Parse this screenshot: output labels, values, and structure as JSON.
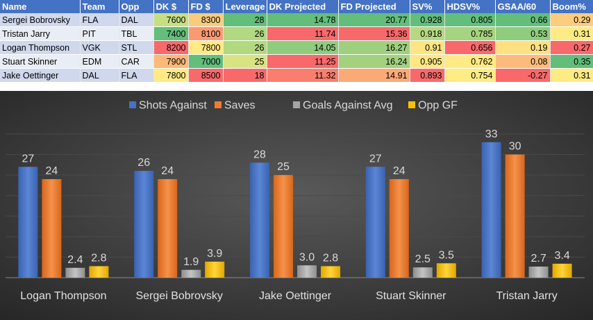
{
  "table": {
    "headers": [
      "Name",
      "Team",
      "Opp",
      "DK $",
      "FD $",
      "Leverage",
      "DK Projected",
      "FD Projected",
      "SV%",
      "HDSV%",
      "GSAA/60",
      "Boom%"
    ],
    "rows": [
      [
        "Sergei Bobrovsky",
        "FLA",
        "DAL",
        "7600",
        "8300",
        "28",
        "14.78",
        "20.77",
        "0.928",
        "0.805",
        "0.66",
        "0.29"
      ],
      [
        "Tristan Jarry",
        "PIT",
        "TBL",
        "7400",
        "8100",
        "26",
        "11.74",
        "15.36",
        "0.918",
        "0.785",
        "0.53",
        "0.31"
      ],
      [
        "Logan Thompson",
        "VGK",
        "STL",
        "8200",
        "7800",
        "26",
        "14.05",
        "16.27",
        "0.91",
        "0.656",
        "0.19",
        "0.27"
      ],
      [
        "Stuart Skinner",
        "EDM",
        "CAR",
        "7900",
        "7000",
        "25",
        "11.25",
        "16.24",
        "0.905",
        "0.762",
        "0.08",
        "0.35"
      ],
      [
        "Jake Oettinger",
        "DAL",
        "FLA",
        "7800",
        "8500",
        "18",
        "11.32",
        "14.91",
        "0.893",
        "0.754",
        "-0.27",
        "0.31"
      ]
    ],
    "cell_colors": [
      [
        "",
        "",
        "",
        "#c6df84",
        "#f8cc7d",
        "#63be7b",
        "#63be7b",
        "#63be7b",
        "#63be7b",
        "#63be7b",
        "#63be7b",
        "#fdcd7e"
      ],
      [
        "",
        "",
        "",
        "#63be7b",
        "#fa9a73",
        "#b2d880",
        "#f8696b",
        "#f8696b",
        "#b6d881",
        "#a6d37f",
        "#8fcc7e",
        "#ffeb84"
      ],
      [
        "",
        "",
        "",
        "#f8696b",
        "#ffeb84",
        "#b2d880",
        "#8fcc7e",
        "#9fd07f",
        "#fde583",
        "#f8696b",
        "#fee082",
        "#f8696b"
      ],
      [
        "",
        "",
        "",
        "#fcb97a",
        "#63be7b",
        "#d8e382",
        "#f8696b",
        "#a3d17f",
        "#ffe884",
        "#ffeb84",
        "#fcbb7a",
        "#63be7b"
      ],
      [
        "",
        "",
        "",
        "#ffeb84",
        "#f8696b",
        "#f8696b",
        "#f97e6e",
        "#fbaa77",
        "#f8696b",
        "#feec84",
        "#f8696b",
        "#ffeb84"
      ]
    ]
  },
  "chart_data": {
    "type": "bar",
    "categories": [
      "Logan Thompson",
      "Sergei Bobrovsky",
      "Jake Oettinger",
      "Stuart Skinner",
      "Tristan Jarry"
    ],
    "series": [
      {
        "name": "Shots Against",
        "values": [
          27,
          26,
          28,
          27,
          33
        ],
        "labels": [
          "27",
          "26",
          "28",
          "27",
          "33"
        ],
        "color": "#4472c4"
      },
      {
        "name": "Saves",
        "values": [
          24,
          24,
          25,
          24,
          30
        ],
        "labels": [
          "24",
          "24",
          "25",
          "24",
          "30"
        ],
        "color": "#ed7d31"
      },
      {
        "name": "Goals Against Avg",
        "values": [
          2.4,
          1.9,
          3.0,
          2.5,
          2.7
        ],
        "labels": [
          "2.4",
          "1.9",
          "3.0",
          "2.5",
          "2.7"
        ],
        "color": "#a5a5a5"
      },
      {
        "name": "Opp GF",
        "values": [
          2.8,
          3.9,
          2.8,
          3.5,
          3.4
        ],
        "labels": [
          "2.8",
          "3.9",
          "2.8",
          "3.5",
          "3.4"
        ],
        "color": "#ffc000"
      }
    ],
    "ylim": [
      0,
      35
    ],
    "gridlines": [
      5,
      10,
      15,
      20,
      25,
      30,
      35
    ],
    "title": "",
    "xlabel": "",
    "ylabel": "",
    "legend": "top",
    "background": "#2f2f2f"
  }
}
